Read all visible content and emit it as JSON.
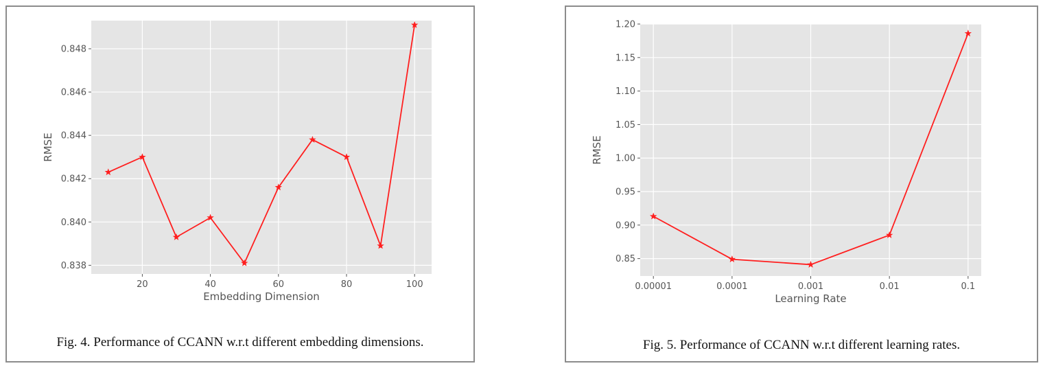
{
  "chart_data": [
    {
      "type": "line",
      "xlabel": "Embedding Dimension",
      "ylabel": "RMSE",
      "xlim": [
        5,
        105
      ],
      "ylim": [
        0.8376,
        0.8493
      ],
      "xticks": [
        20,
        40,
        60,
        80,
        100
      ],
      "xtick_labels": [
        "20",
        "40",
        "60",
        "80",
        "100"
      ],
      "yticks": [
        0.838,
        0.84,
        0.842,
        0.844,
        0.846,
        0.848
      ],
      "ytick_labels": [
        "0.838",
        "0.840",
        "0.842",
        "0.844",
        "0.846",
        "0.848"
      ],
      "grid": true,
      "series": [
        {
          "color": "#ff1f1f",
          "marker": "star",
          "x": [
            10,
            20,
            30,
            40,
            50,
            60,
            70,
            80,
            90,
            100
          ],
          "values": [
            0.8423,
            0.843,
            0.8393,
            0.8402,
            0.8381,
            0.8416,
            0.8438,
            0.843,
            0.8389,
            0.8491
          ]
        }
      ],
      "caption": "Fig. 4.  Performance of CCANN w.r.t different embedding dimensions."
    },
    {
      "type": "line",
      "xlabel": "Learning Rate",
      "ylabel": "RMSE",
      "xscale": "log",
      "xlim": [
        6.8e-06,
        0.147
      ],
      "ylim": [
        0.824,
        1.2
      ],
      "xticks": [
        1e-05,
        0.0001,
        0.001,
        0.01,
        0.1
      ],
      "xtick_labels": [
        "0.00001",
        "0.0001",
        "0.001",
        "0.01",
        "0.1"
      ],
      "yticks": [
        0.85,
        0.9,
        0.95,
        1.0,
        1.05,
        1.1,
        1.15,
        1.2
      ],
      "ytick_labels": [
        "0.85",
        "0.90",
        "0.95",
        "1.00",
        "1.05",
        "1.10",
        "1.15",
        "1.20"
      ],
      "grid": true,
      "series": [
        {
          "color": "#ff1f1f",
          "marker": "star",
          "x": [
            1e-05,
            0.0001,
            0.001,
            0.01,
            0.1
          ],
          "values": [
            0.913,
            0.849,
            0.841,
            0.885,
            1.186
          ]
        }
      ],
      "caption": "Fig. 5.  Performance of CCANN w.r.t different learning rates."
    }
  ]
}
